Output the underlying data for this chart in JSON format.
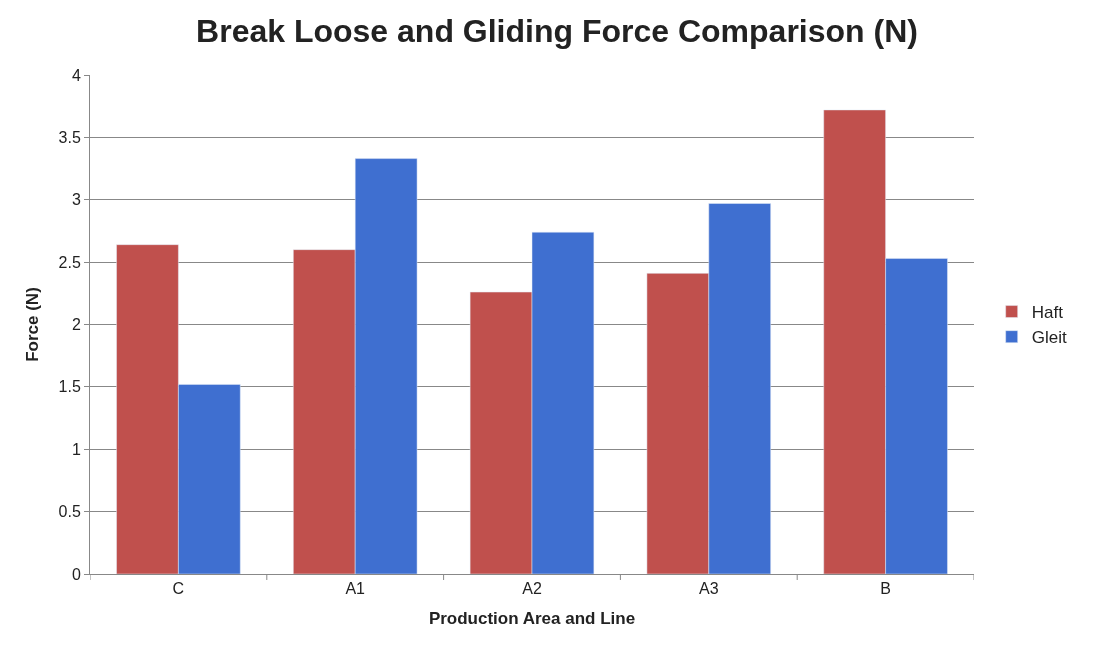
{
  "chart_data": {
    "type": "bar",
    "title": "Break Loose and Gliding Force Comparison (N)",
    "xlabel": "Production Area and Line",
    "ylabel": "Force (N)",
    "categories": [
      "C",
      "A1",
      "A2",
      "A3",
      "B"
    ],
    "series": [
      {
        "name": "Haft",
        "color": "#c0504d",
        "values": [
          2.64,
          2.6,
          2.26,
          2.41,
          3.72
        ]
      },
      {
        "name": "Gleit",
        "color": "#3f6fd0",
        "values": [
          1.52,
          3.33,
          2.74,
          2.97,
          2.53
        ]
      }
    ],
    "ylim": [
      0,
      4
    ],
    "yticks": [
      0,
      0.5,
      1,
      1.5,
      2,
      2.5,
      3,
      3.5,
      4
    ],
    "grid": "y",
    "legend": "right"
  }
}
